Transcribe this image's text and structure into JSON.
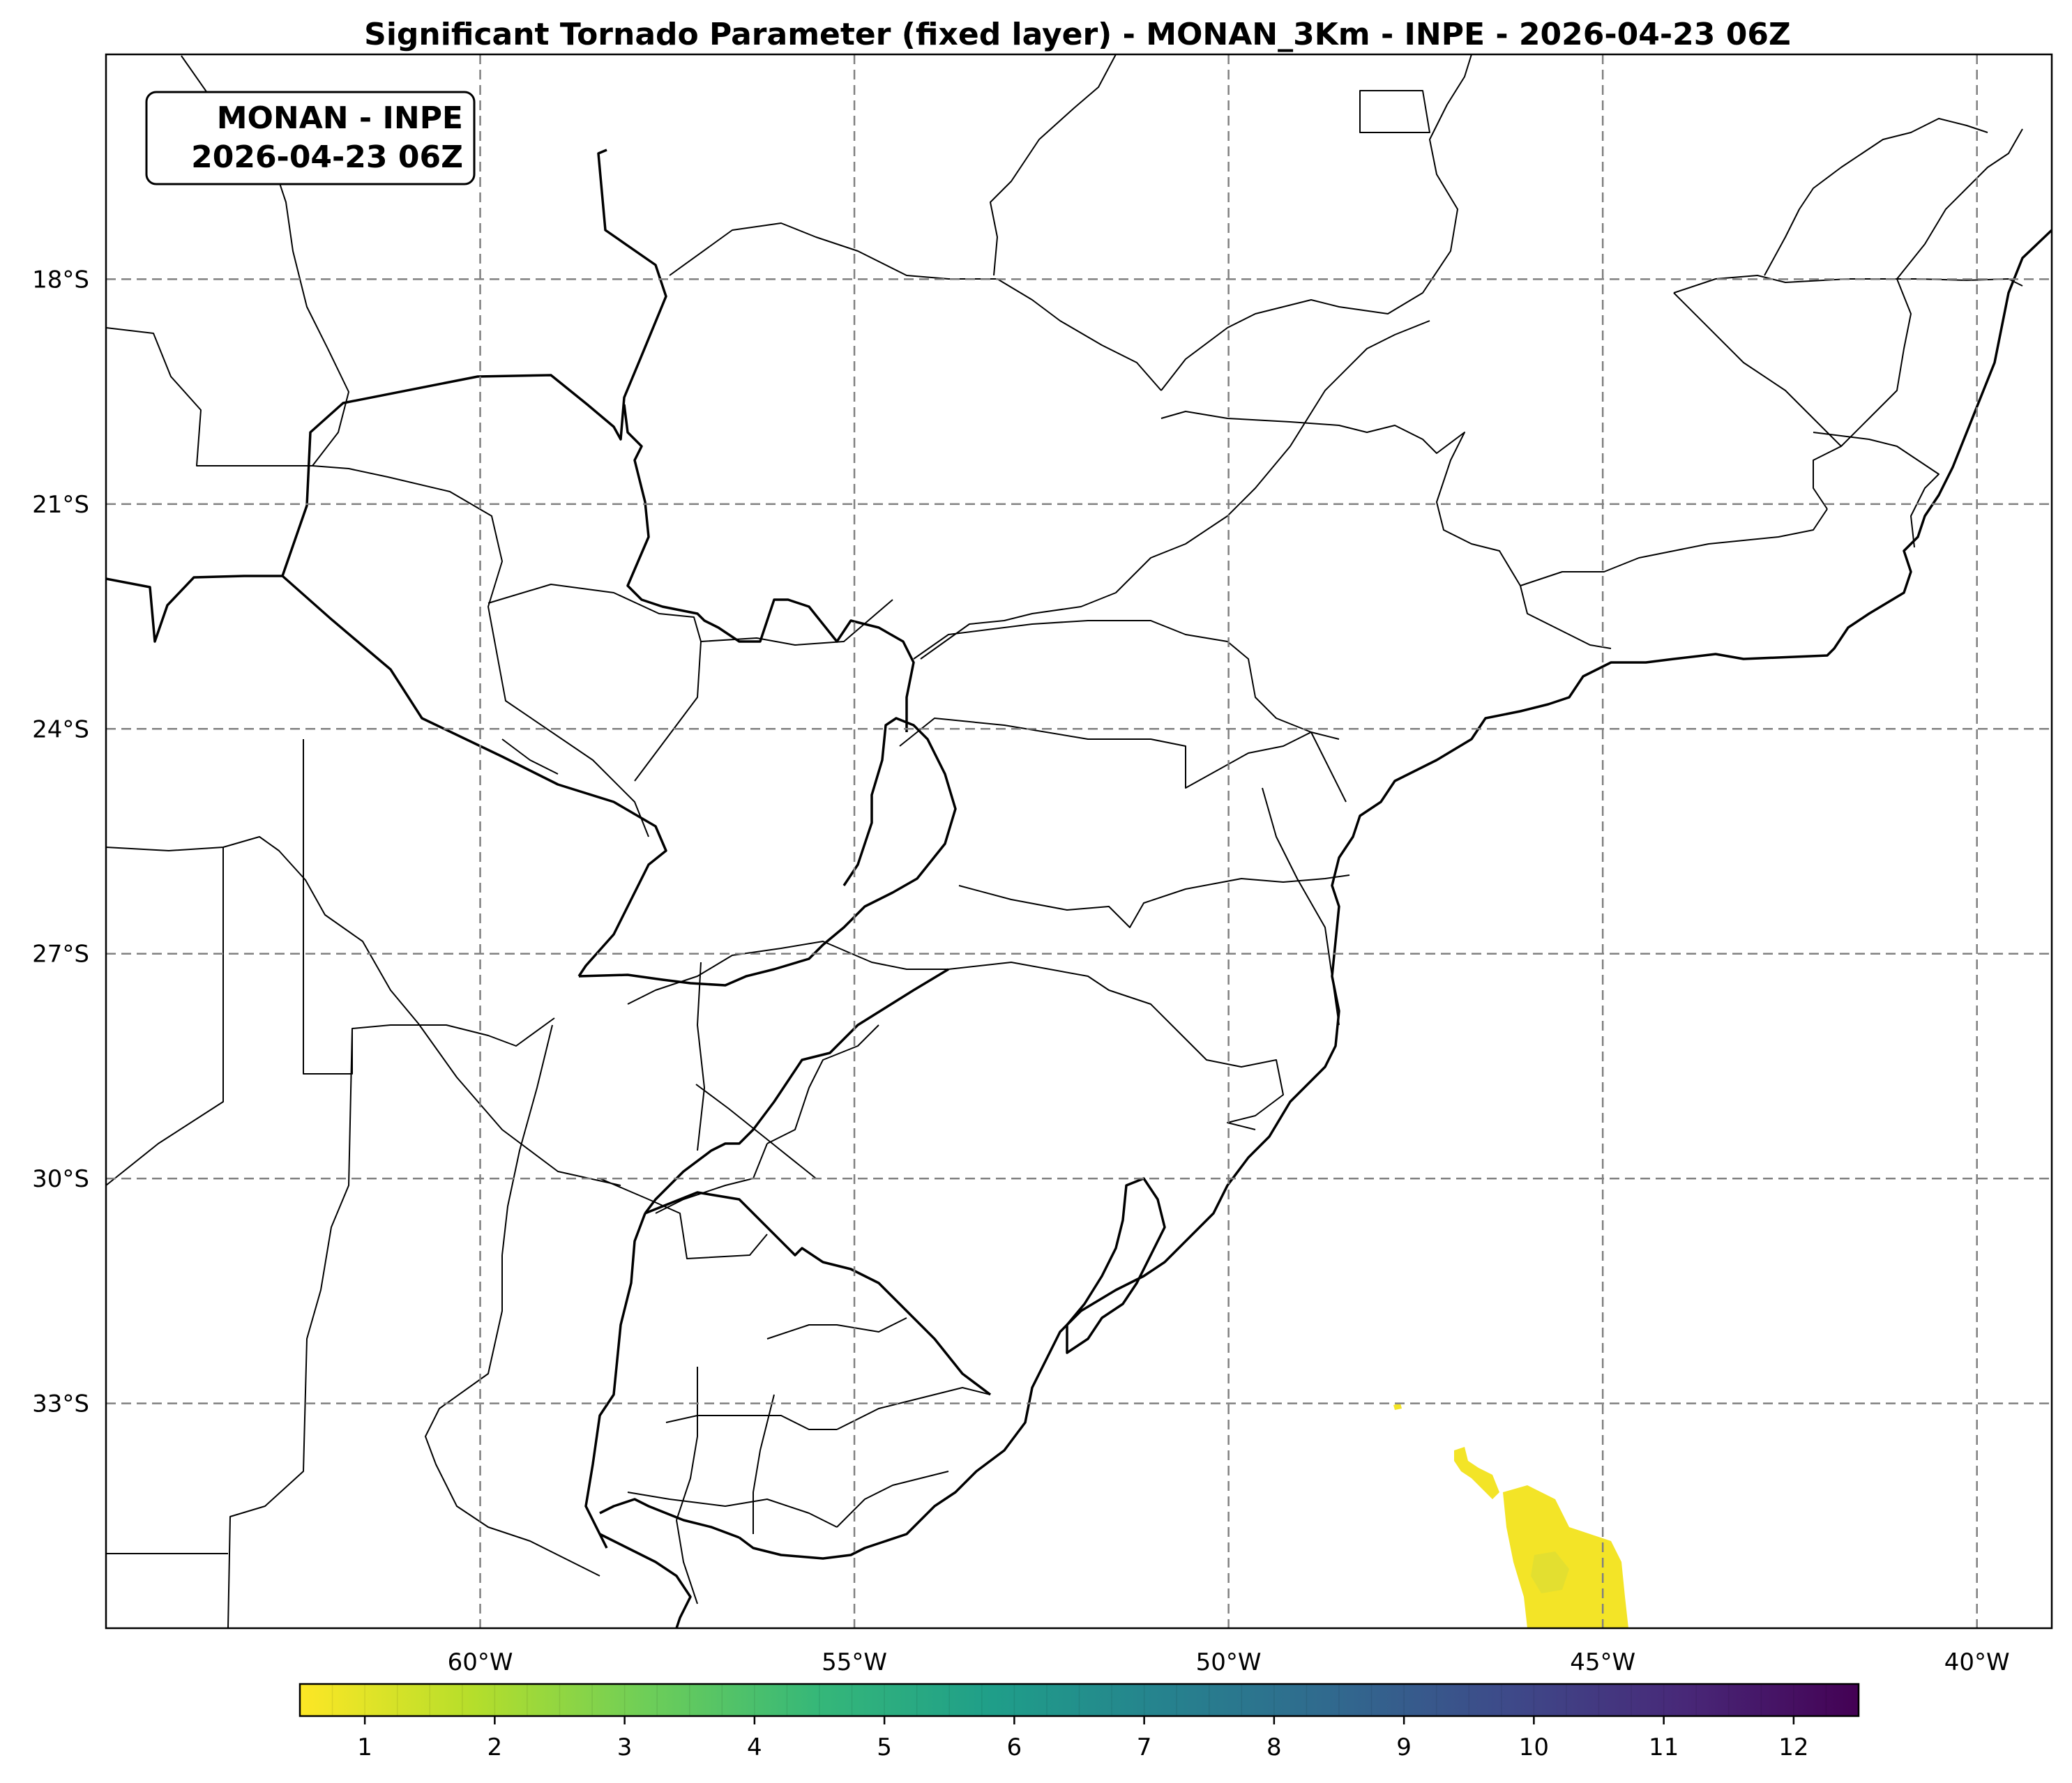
{
  "title": "Significant Tornado Parameter (fixed layer) - MONAN_3Km - INPE - 2026-04-23 06Z",
  "info_box": {
    "line1": "MONAN - INPE",
    "line2": "2026-04-23 06Z"
  },
  "map": {
    "lon_range": [
      -65,
      -39
    ],
    "lat_range": [
      -36,
      -15
    ],
    "lon_ticks": [
      {
        "value": -60,
        "label": "60°W"
      },
      {
        "value": -55,
        "label": "55°W"
      },
      {
        "value": -50,
        "label": "50°W"
      },
      {
        "value": -45,
        "label": "45°W"
      },
      {
        "value": -40,
        "label": "40°W"
      }
    ],
    "lat_ticks": [
      {
        "value": -18,
        "label": "18°S"
      },
      {
        "value": -21,
        "label": "21°S"
      },
      {
        "value": -24,
        "label": "24°S"
      },
      {
        "value": -27,
        "label": "27°S"
      },
      {
        "value": -30,
        "label": "30°S"
      },
      {
        "value": -33,
        "label": "33°S"
      }
    ],
    "gridlines": true,
    "field_color": "#f3e427",
    "coast_color": "#000000",
    "grid_color": "#808080"
  },
  "colorbar": {
    "min": 0.5,
    "max": 12.5,
    "ticks": [
      {
        "value": 1,
        "label": "1"
      },
      {
        "value": 2,
        "label": "2"
      },
      {
        "value": 3,
        "label": "3"
      },
      {
        "value": 4,
        "label": "4"
      },
      {
        "value": 5,
        "label": "5"
      },
      {
        "value": 6,
        "label": "6"
      },
      {
        "value": 7,
        "label": "7"
      },
      {
        "value": 8,
        "label": "8"
      },
      {
        "value": 9,
        "label": "9"
      },
      {
        "value": 10,
        "label": "10"
      },
      {
        "value": 11,
        "label": "11"
      },
      {
        "value": 12,
        "label": "12"
      }
    ],
    "colors": [
      "#fde725",
      "#b5de2b",
      "#6ece58",
      "#35b779",
      "#1f9e89",
      "#26828e",
      "#31688e",
      "#3e4989",
      "#482878",
      "#440154"
    ]
  }
}
